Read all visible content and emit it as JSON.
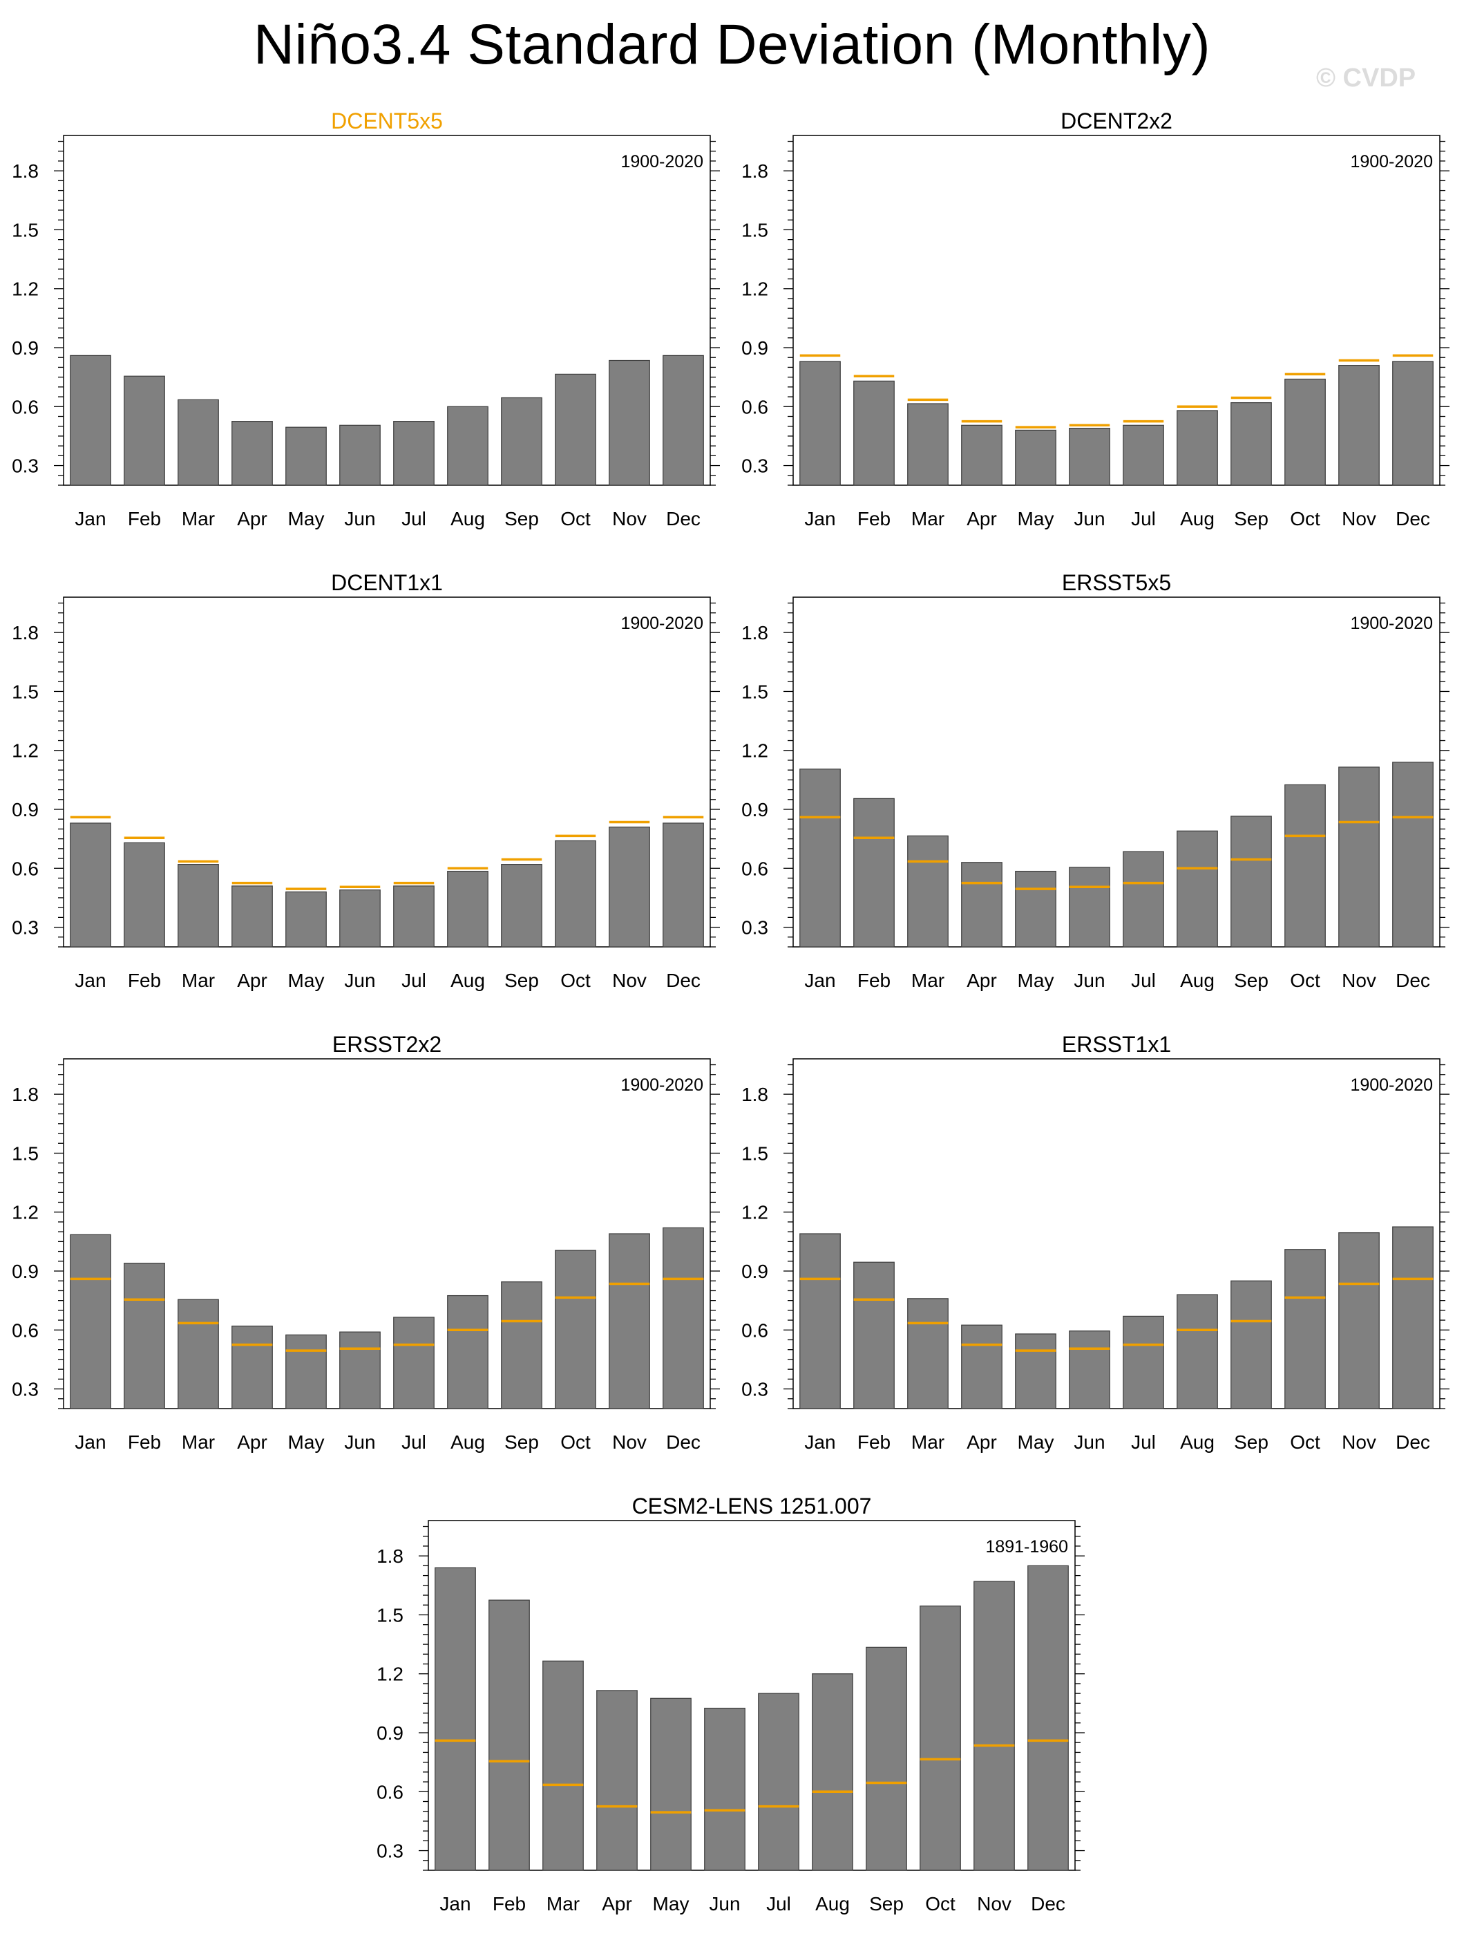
{
  "title": "Niño3.4 Standard Deviation (Monthly)",
  "watermark": "© CVDP",
  "colors": {
    "bar": "#808080",
    "bar_edge": "#3c3c3c",
    "observed_line": "#f0a000",
    "highlight_title": "#f0a000"
  },
  "chart_data": [
    {
      "type": "bar",
      "title": "DCENT5x5",
      "title_highlight": true,
      "period": "1900-2020",
      "categories": [
        "Jan",
        "Feb",
        "Mar",
        "Apr",
        "May",
        "Jun",
        "Jul",
        "Aug",
        "Sep",
        "Oct",
        "Nov",
        "Dec"
      ],
      "values": [
        0.86,
        0.755,
        0.635,
        0.525,
        0.495,
        0.505,
        0.525,
        0.6,
        0.645,
        0.765,
        0.835,
        0.86
      ],
      "reference": [
        0.86,
        0.755,
        0.635,
        0.525,
        0.495,
        0.505,
        0.525,
        0.6,
        0.645,
        0.765,
        0.835,
        0.86
      ],
      "show_reference": false,
      "ylim": [
        0.2,
        1.98
      ],
      "yticks": [
        "0.3",
        "0.6",
        "0.9",
        "1.2",
        "1.5",
        "1.8"
      ]
    },
    {
      "type": "bar",
      "title": "DCENT2x2",
      "title_highlight": false,
      "period": "1900-2020",
      "categories": [
        "Jan",
        "Feb",
        "Mar",
        "Apr",
        "May",
        "Jun",
        "Jul",
        "Aug",
        "Sep",
        "Oct",
        "Nov",
        "Dec"
      ],
      "values": [
        0.83,
        0.73,
        0.615,
        0.505,
        0.48,
        0.49,
        0.505,
        0.58,
        0.62,
        0.74,
        0.81,
        0.83
      ],
      "reference": [
        0.86,
        0.755,
        0.635,
        0.525,
        0.495,
        0.505,
        0.525,
        0.6,
        0.645,
        0.765,
        0.835,
        0.86
      ],
      "show_reference": true,
      "ylim": [
        0.2,
        1.98
      ],
      "yticks": [
        "0.3",
        "0.6",
        "0.9",
        "1.2",
        "1.5",
        "1.8"
      ]
    },
    {
      "type": "bar",
      "title": "DCENT1x1",
      "title_highlight": false,
      "period": "1900-2020",
      "categories": [
        "Jan",
        "Feb",
        "Mar",
        "Apr",
        "May",
        "Jun",
        "Jul",
        "Aug",
        "Sep",
        "Oct",
        "Nov",
        "Dec"
      ],
      "values": [
        0.83,
        0.73,
        0.62,
        0.51,
        0.48,
        0.49,
        0.51,
        0.585,
        0.62,
        0.74,
        0.81,
        0.83
      ],
      "reference": [
        0.86,
        0.755,
        0.635,
        0.525,
        0.495,
        0.505,
        0.525,
        0.6,
        0.645,
        0.765,
        0.835,
        0.86
      ],
      "show_reference": true,
      "ylim": [
        0.2,
        1.98
      ],
      "yticks": [
        "0.3",
        "0.6",
        "0.9",
        "1.2",
        "1.5",
        "1.8"
      ]
    },
    {
      "type": "bar",
      "title": "ERSST5x5",
      "title_highlight": false,
      "period": "1900-2020",
      "categories": [
        "Jan",
        "Feb",
        "Mar",
        "Apr",
        "May",
        "Jun",
        "Jul",
        "Aug",
        "Sep",
        "Oct",
        "Nov",
        "Dec"
      ],
      "values": [
        1.105,
        0.955,
        0.765,
        0.63,
        0.585,
        0.605,
        0.685,
        0.79,
        0.865,
        1.025,
        1.115,
        1.14
      ],
      "reference": [
        0.86,
        0.755,
        0.635,
        0.525,
        0.495,
        0.505,
        0.525,
        0.6,
        0.645,
        0.765,
        0.835,
        0.86
      ],
      "show_reference": true,
      "ylim": [
        0.2,
        1.98
      ],
      "yticks": [
        "0.3",
        "0.6",
        "0.9",
        "1.2",
        "1.5",
        "1.8"
      ]
    },
    {
      "type": "bar",
      "title": "ERSST2x2",
      "title_highlight": false,
      "period": "1900-2020",
      "categories": [
        "Jan",
        "Feb",
        "Mar",
        "Apr",
        "May",
        "Jun",
        "Jul",
        "Aug",
        "Sep",
        "Oct",
        "Nov",
        "Dec"
      ],
      "values": [
        1.085,
        0.94,
        0.755,
        0.62,
        0.575,
        0.59,
        0.665,
        0.775,
        0.845,
        1.005,
        1.09,
        1.12
      ],
      "reference": [
        0.86,
        0.755,
        0.635,
        0.525,
        0.495,
        0.505,
        0.525,
        0.6,
        0.645,
        0.765,
        0.835,
        0.86
      ],
      "show_reference": true,
      "ylim": [
        0.2,
        1.98
      ],
      "yticks": [
        "0.3",
        "0.6",
        "0.9",
        "1.2",
        "1.5",
        "1.8"
      ]
    },
    {
      "type": "bar",
      "title": "ERSST1x1",
      "title_highlight": false,
      "period": "1900-2020",
      "categories": [
        "Jan",
        "Feb",
        "Mar",
        "Apr",
        "May",
        "Jun",
        "Jul",
        "Aug",
        "Sep",
        "Oct",
        "Nov",
        "Dec"
      ],
      "values": [
        1.09,
        0.945,
        0.76,
        0.625,
        0.58,
        0.595,
        0.67,
        0.78,
        0.85,
        1.01,
        1.095,
        1.125
      ],
      "reference": [
        0.86,
        0.755,
        0.635,
        0.525,
        0.495,
        0.505,
        0.525,
        0.6,
        0.645,
        0.765,
        0.835,
        0.86
      ],
      "show_reference": true,
      "ylim": [
        0.2,
        1.98
      ],
      "yticks": [
        "0.3",
        "0.6",
        "0.9",
        "1.2",
        "1.5",
        "1.8"
      ]
    },
    {
      "type": "bar",
      "title": "CESM2-LENS 1251.007",
      "title_highlight": false,
      "period": "1891-1960",
      "categories": [
        "Jan",
        "Feb",
        "Mar",
        "Apr",
        "May",
        "Jun",
        "Jul",
        "Aug",
        "Sep",
        "Oct",
        "Nov",
        "Dec"
      ],
      "values": [
        1.74,
        1.575,
        1.265,
        1.115,
        1.075,
        1.025,
        1.1,
        1.2,
        1.335,
        1.545,
        1.67,
        1.75
      ],
      "reference": [
        0.86,
        0.755,
        0.635,
        0.525,
        0.495,
        0.505,
        0.525,
        0.6,
        0.645,
        0.765,
        0.835,
        0.86
      ],
      "show_reference": true,
      "ylim": [
        0.2,
        1.98
      ],
      "yticks": [
        "0.3",
        "0.6",
        "0.9",
        "1.2",
        "1.5",
        "1.8"
      ]
    }
  ]
}
